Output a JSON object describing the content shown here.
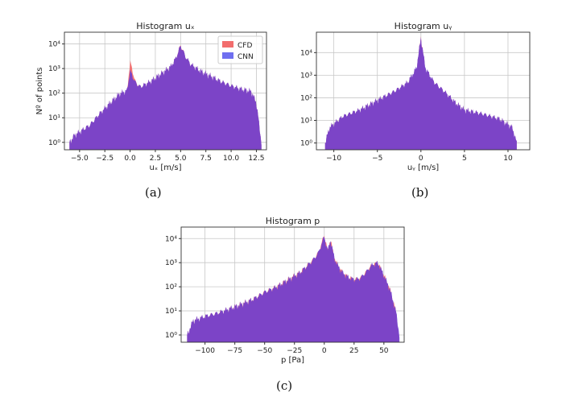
{
  "colors": {
    "cfd": "#f26d6d",
    "cnn": "#6f6ff0",
    "overlap": "#7a35bf",
    "grid": "#c8c8c8"
  },
  "captions": [
    "(a)",
    "(b)",
    "(c)"
  ],
  "chart_data": [
    {
      "type": "area",
      "title": "Histogram uₓ",
      "xlabel": "uₓ [m/s]",
      "ylabel": "Nº of points",
      "yscale": "log",
      "xlim": [
        -6.5,
        13.5
      ],
      "ylim": [
        0.5,
        30000
      ],
      "xticks": [
        -5,
        -2.5,
        0,
        2.5,
        5,
        7.5,
        10,
        12.5
      ],
      "xtick_labels": [
        "−5.0",
        "−2.5",
        "0.0",
        "2.5",
        "5.0",
        "7.5",
        "10.0",
        "12.5"
      ],
      "yticks": [
        1,
        10,
        100,
        1000,
        10000
      ],
      "ytick_labels": [
        "10⁰",
        "10¹",
        "10²",
        "10³",
        "10⁴"
      ],
      "grid": true,
      "legend": "top-right",
      "series": [
        {
          "name": "CFD",
          "color": "#f26d6d",
          "x": [
            -6,
            -5.5,
            -4,
            -3,
            -2,
            -1,
            -0.3,
            0,
            0.5,
            1,
            2,
            3,
            4,
            4.5,
            5,
            5.5,
            6,
            7,
            8,
            9,
            10,
            11,
            12,
            12.5,
            13
          ],
          "y": [
            1,
            2,
            5,
            15,
            40,
            100,
            120,
            2000,
            300,
            180,
            300,
            600,
            1200,
            2500,
            9000,
            3000,
            1500,
            800,
            500,
            300,
            200,
            150,
            120,
            40,
            1
          ]
        },
        {
          "name": "CNN",
          "color": "#6f6ff0",
          "x": [
            -6,
            -5.5,
            -4,
            -3,
            -2,
            -1,
            -0.3,
            0,
            0.5,
            1,
            2,
            3,
            4,
            4.5,
            5,
            5.5,
            6,
            7,
            8,
            9,
            10,
            11,
            12,
            12.5,
            13
          ],
          "y": [
            1,
            2,
            5,
            15,
            40,
            100,
            130,
            800,
            280,
            180,
            300,
            600,
            1200,
            2500,
            8500,
            3000,
            1500,
            800,
            500,
            300,
            200,
            150,
            120,
            40,
            1
          ]
        }
      ]
    },
    {
      "type": "area",
      "title": "Histogram uᵧ",
      "xlabel": "uᵧ [m/s]",
      "ylabel": "",
      "yscale": "log",
      "xlim": [
        -12,
        12.5
      ],
      "ylim": [
        0.5,
        80000
      ],
      "xticks": [
        -10,
        -5,
        0,
        5,
        10
      ],
      "xtick_labels": [
        "−10",
        "−5",
        "0",
        "5",
        "10"
      ],
      "yticks": [
        1,
        10,
        100,
        1000,
        10000
      ],
      "ytick_labels": [
        "10⁰",
        "10¹",
        "10²",
        "10³",
        "10⁴"
      ],
      "grid": true,
      "legend": "none",
      "series": [
        {
          "name": "CFD",
          "color": "#f26d6d",
          "x": [
            -11,
            -10.5,
            -9,
            -7,
            -5,
            -3,
            -1.5,
            -0.5,
            0,
            0.5,
            1.5,
            3,
            4,
            5,
            7,
            9,
            10.5,
            11
          ],
          "y": [
            1,
            5,
            15,
            30,
            80,
            200,
            500,
            2000,
            50000,
            2000,
            500,
            150,
            60,
            30,
            20,
            12,
            5,
            1
          ]
        },
        {
          "name": "CNN",
          "color": "#6f6ff0",
          "x": [
            -11,
            -10.5,
            -9,
            -7,
            -5,
            -3,
            -1.5,
            -0.5,
            0,
            0.5,
            1.5,
            3,
            4,
            5,
            7,
            9,
            10.5,
            11
          ],
          "y": [
            1,
            5,
            15,
            30,
            80,
            200,
            500,
            2200,
            45000,
            2200,
            500,
            150,
            60,
            30,
            20,
            12,
            5,
            1
          ]
        }
      ]
    },
    {
      "type": "area",
      "title": "Histogram p",
      "xlabel": "p [Pa]",
      "ylabel": "",
      "yscale": "log",
      "xlim": [
        -120,
        67
      ],
      "ylim": [
        0.5,
        30000
      ],
      "xticks": [
        -100,
        -75,
        -50,
        -25,
        0,
        25,
        50
      ],
      "xtick_labels": [
        "−100",
        "−75",
        "−50",
        "−25",
        "0",
        "25",
        "50"
      ],
      "yticks": [
        1,
        10,
        100,
        1000,
        10000
      ],
      "ytick_labels": [
        "10⁰",
        "10¹",
        "10²",
        "10³",
        "10⁴"
      ],
      "grid": true,
      "legend": "none",
      "series": [
        {
          "name": "CFD",
          "color": "#f26d6d",
          "x": [
            -115,
            -110,
            -100,
            -90,
            -75,
            -60,
            -50,
            -40,
            -30,
            -20,
            -10,
            -5,
            0,
            3,
            5,
            8,
            10,
            15,
            20,
            25,
            30,
            35,
            40,
            45,
            50,
            55,
            60,
            62
          ],
          "y": [
            1,
            4,
            6,
            8,
            15,
            30,
            60,
            100,
            200,
            400,
            1200,
            2500,
            14000,
            3000,
            10000,
            2000,
            1000,
            400,
            250,
            200,
            220,
            400,
            800,
            1000,
            300,
            80,
            10,
            1
          ]
        },
        {
          "name": "CNN",
          "color": "#6f6ff0",
          "x": [
            -115,
            -110,
            -100,
            -90,
            -75,
            -60,
            -50,
            -40,
            -30,
            -20,
            -10,
            -5,
            0,
            3,
            5,
            8,
            10,
            15,
            20,
            25,
            30,
            35,
            40,
            45,
            50,
            55,
            60,
            63
          ],
          "y": [
            1,
            4,
            6,
            8,
            15,
            30,
            60,
            100,
            200,
            400,
            1200,
            2500,
            12000,
            3000,
            9000,
            2000,
            1000,
            400,
            250,
            200,
            220,
            400,
            800,
            1000,
            300,
            80,
            10,
            1
          ]
        }
      ]
    }
  ]
}
